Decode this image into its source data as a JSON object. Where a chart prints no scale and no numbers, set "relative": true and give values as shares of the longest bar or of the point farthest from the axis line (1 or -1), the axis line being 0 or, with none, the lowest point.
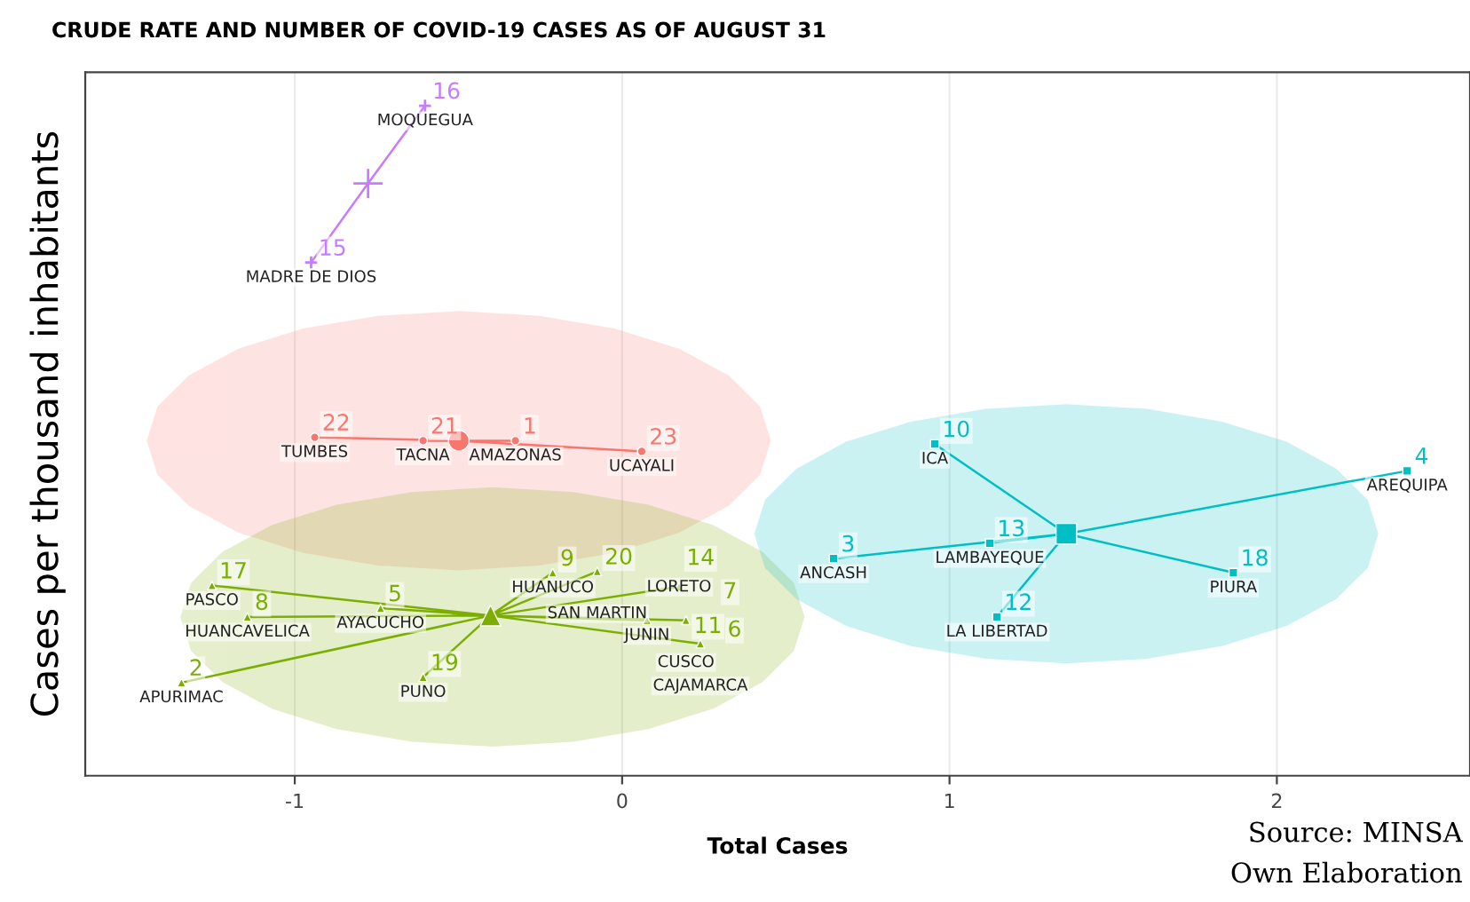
{
  "chart_data": {
    "type": "scatter",
    "title": "CRUDE RATE AND NUMBER OF COVID-19 CASES AS OF AUGUST 31",
    "xlabel": "Total Cases",
    "ylabel": "Cases per thousand inhabitants",
    "relative": true,
    "xlim": [
      -1.64,
      2.59
    ],
    "xticks": [
      -1,
      0,
      1,
      2
    ],
    "grid": "x",
    "legend": false,
    "annotations": [
      "Source: MINSA",
      "Own Elaboration",
      {
        "text": "MADRE DE DIOS",
        "x": -0.95,
        "y": 0.766
      },
      {
        "text": "15",
        "x": -0.95,
        "y": 0.766
      },
      {
        "text": "MOQUEGUA",
        "x": -0.602,
        "y": 1.0
      },
      {
        "text": "16",
        "x": -0.602,
        "y": 1.0
      },
      {
        "text": "TUMBES",
        "x": -0.939,
        "y": 0.505
      },
      {
        "text": "22",
        "x": -0.939,
        "y": 0.505
      },
      {
        "text": "TACNA",
        "x": -0.608,
        "y": 0.5
      },
      {
        "text": "21",
        "x": -0.608,
        "y": 0.5
      },
      {
        "text": "AMAZONAS",
        "x": -0.326,
        "y": 0.5
      },
      {
        "text": "1",
        "x": -0.326,
        "y": 0.5
      },
      {
        "text": "UCAYALI",
        "x": 0.06,
        "y": 0.484
      },
      {
        "text": "23",
        "x": 0.06,
        "y": 0.484
      },
      {
        "text": "PASCO",
        "x": -1.253,
        "y": 0.284
      },
      {
        "text": "17",
        "x": -1.253,
        "y": 0.284
      },
      {
        "text": "HUANCAVELICA",
        "x": -1.145,
        "y": 0.237
      },
      {
        "text": "8",
        "x": -1.145,
        "y": 0.237
      },
      {
        "text": "AYACUCHO",
        "x": -0.738,
        "y": 0.25
      },
      {
        "text": "5",
        "x": -0.738,
        "y": 0.25
      },
      {
        "text": "APURIMAC",
        "x": -1.346,
        "y": 0.139
      },
      {
        "text": "2",
        "x": -1.346,
        "y": 0.139
      },
      {
        "text": "PUNO",
        "x": -0.608,
        "y": 0.147
      },
      {
        "text": "19",
        "x": -0.608,
        "y": 0.147
      },
      {
        "text": "HUANUCO",
        "x": -0.212,
        "y": 0.303
      },
      {
        "text": "9",
        "x": -0.212,
        "y": 0.303
      },
      {
        "text": "SAN MARTIN",
        "x": -0.076,
        "y": 0.305
      },
      {
        "text": "20",
        "x": -0.076,
        "y": 0.305
      },
      {
        "text": "LORETO",
        "x": 0.174,
        "y": 0.282
      },
      {
        "text": "14",
        "x": 0.174,
        "y": 0.282
      },
      {
        "text": "JUNIN",
        "x": 0.076,
        "y": 0.232
      },
      {
        "text": "11",
        "x": 0.076,
        "y": 0.232
      },
      {
        "text": "CUSCO",
        "x": 0.195,
        "y": 0.232
      },
      {
        "text": "7",
        "x": 0.195,
        "y": 0.232
      },
      {
        "text": "CAJAMARCA",
        "x": 0.239,
        "y": 0.197
      },
      {
        "text": "6",
        "x": 0.239,
        "y": 0.197
      },
      {
        "text": "ANCASH",
        "x": 0.646,
        "y": 0.324
      },
      {
        "text": "3",
        "x": 0.646,
        "y": 0.324
      },
      {
        "text": "LAMBAYEQUE",
        "x": 1.123,
        "y": 0.347
      },
      {
        "text": "13",
        "x": 1.123,
        "y": 0.347
      },
      {
        "text": "ICA",
        "x": 0.955,
        "y": 0.495
      },
      {
        "text": "10",
        "x": 0.955,
        "y": 0.495
      },
      {
        "text": "LA LIBERTAD",
        "x": 1.145,
        "y": 0.237
      },
      {
        "text": "12",
        "x": 1.145,
        "y": 0.237
      },
      {
        "text": "PIURA",
        "x": 1.867,
        "y": 0.303
      },
      {
        "text": "18",
        "x": 1.867,
        "y": 0.303
      },
      {
        "text": "AREQUIPA",
        "x": 2.398,
        "y": 0.455
      },
      {
        "text": "4",
        "x": 2.398,
        "y": 0.455
      }
    ],
    "series": [
      {
        "type": "area",
        "color": "#f8766d",
        "x": [
          0.451,
          0.419,
          0.324,
          0.173,
          -0.024,
          -0.253,
          -0.499,
          -0.745,
          -0.974,
          -1.171,
          -1.322,
          -1.417,
          -1.449,
          -1.417,
          -1.322,
          -1.171,
          -0.974,
          -0.745,
          -0.499,
          -0.253,
          -0.024,
          0.173,
          0.324,
          0.419
        ],
        "values": [
          0.5,
          0.55,
          0.596,
          0.636,
          0.666,
          0.685,
          0.692,
          0.685,
          0.666,
          0.636,
          0.596,
          0.55,
          0.5,
          0.45,
          0.404,
          0.364,
          0.334,
          0.315,
          0.308,
          0.315,
          0.334,
          0.364,
          0.404,
          0.45
        ]
      },
      {
        "type": "area",
        "color": "#7cae00",
        "x": [
          0.554,
          0.522,
          0.427,
          0.276,
          0.079,
          -0.15,
          -0.396,
          -0.642,
          -0.871,
          -1.068,
          -1.219,
          -1.314,
          -1.346,
          -1.314,
          -1.219,
          -1.068,
          -0.871,
          -0.642,
          -0.396,
          -0.15,
          0.079,
          0.276,
          0.427,
          0.522
        ],
        "values": [
          0.237,
          0.287,
          0.333,
          0.373,
          0.403,
          0.422,
          0.429,
          0.422,
          0.403,
          0.373,
          0.333,
          0.287,
          0.237,
          0.187,
          0.141,
          0.101,
          0.071,
          0.052,
          0.045,
          0.052,
          0.071,
          0.101,
          0.141,
          0.187
        ]
      },
      {
        "type": "area",
        "color": "#00bfc4",
        "x": [
          2.307,
          2.275,
          2.18,
          2.029,
          1.832,
          1.603,
          1.357,
          1.111,
          0.882,
          0.685,
          0.534,
          0.439,
          0.407,
          0.439,
          0.534,
          0.685,
          0.882,
          1.111,
          1.357,
          1.603,
          1.832,
          2.029,
          2.18,
          2.275
        ],
        "values": [
          0.361,
          0.411,
          0.457,
          0.497,
          0.527,
          0.546,
          0.553,
          0.546,
          0.527,
          0.497,
          0.457,
          0.411,
          0.361,
          0.311,
          0.265,
          0.225,
          0.195,
          0.176,
          0.169,
          0.176,
          0.195,
          0.225,
          0.265,
          0.311
        ]
      },
      {
        "type": "line",
        "color": "#c77cff",
        "x": [
          -0.776,
          -0.95,
          -0.776,
          -0.602
        ],
        "values": [
          0.884,
          0.766,
          0.884,
          1.0
        ]
      },
      {
        "type": "line",
        "color": "#f8766d",
        "x": [
          -0.499,
          -0.939,
          -0.499,
          -0.608,
          -0.499,
          -0.326,
          -0.499,
          0.06
        ],
        "values": [
          0.5,
          0.505,
          0.5,
          0.5,
          0.5,
          0.5,
          0.5,
          0.484
        ]
      },
      {
        "type": "line",
        "color": "#7cae00",
        "x": [
          -0.402,
          -1.253,
          -0.402,
          -1.145,
          -0.402,
          -0.738,
          -0.402,
          -1.346,
          -0.402,
          -0.608,
          -0.402,
          -0.212,
          -0.402,
          -0.076,
          -0.402,
          0.174,
          -0.402,
          0.076,
          -0.402,
          0.195,
          -0.402,
          0.239
        ],
        "values": [
          0.239,
          0.284,
          0.239,
          0.237,
          0.239,
          0.25,
          0.239,
          0.139,
          0.239,
          0.147,
          0.239,
          0.303,
          0.239,
          0.305,
          0.239,
          0.282,
          0.239,
          0.232,
          0.239,
          0.232,
          0.239,
          0.197
        ]
      },
      {
        "type": "line",
        "color": "#00bfc4",
        "x": [
          1.357,
          0.646,
          1.357,
          1.123,
          1.357,
          0.955,
          1.357,
          1.145,
          1.357,
          1.867,
          1.357,
          2.398
        ],
        "values": [
          0.361,
          0.324,
          0.361,
          0.347,
          0.361,
          0.495,
          0.361,
          0.237,
          0.361,
          0.303,
          0.361,
          0.455
        ]
      },
      {
        "color": "#c77cff",
        "marker": "cross",
        "x": [
          -0.95,
          -0.602
        ],
        "values": [
          0.766,
          1.0
        ]
      },
      {
        "color": "#f8766d",
        "marker": "circle",
        "x": [
          -0.939,
          -0.608,
          -0.326,
          0.06
        ],
        "values": [
          0.505,
          0.5,
          0.5,
          0.484
        ]
      },
      {
        "color": "#7cae00",
        "marker": "triangle",
        "x": [
          -1.253,
          -1.145,
          -0.738,
          -1.346,
          -0.608,
          -0.212,
          -0.076,
          0.174,
          0.076,
          0.195,
          0.239
        ],
        "values": [
          0.284,
          0.237,
          0.25,
          0.139,
          0.147,
          0.303,
          0.305,
          0.282,
          0.232,
          0.232,
          0.197
        ]
      },
      {
        "color": "#00bfc4",
        "marker": "square",
        "x": [
          0.646,
          1.123,
          0.955,
          1.145,
          1.867,
          2.398
        ],
        "values": [
          0.324,
          0.347,
          0.495,
          0.237,
          0.303,
          0.455
        ]
      },
      {
        "type": "scatter",
        "color": "#c77cff",
        "marker": "cross",
        "x": [
          -0.776
        ],
        "values": [
          0.884
        ]
      },
      {
        "type": "scatter",
        "color": "#f8766d",
        "marker": "circle",
        "x": [
          -0.499
        ],
        "values": [
          0.5
        ]
      },
      {
        "type": "scatter",
        "color": "#7cae00",
        "marker": "triangle",
        "x": [
          -0.402
        ],
        "values": [
          0.239
        ]
      },
      {
        "type": "scatter",
        "color": "#00bfc4",
        "marker": "square",
        "x": [
          1.357
        ],
        "values": [
          0.361
        ]
      }
    ]
  }
}
